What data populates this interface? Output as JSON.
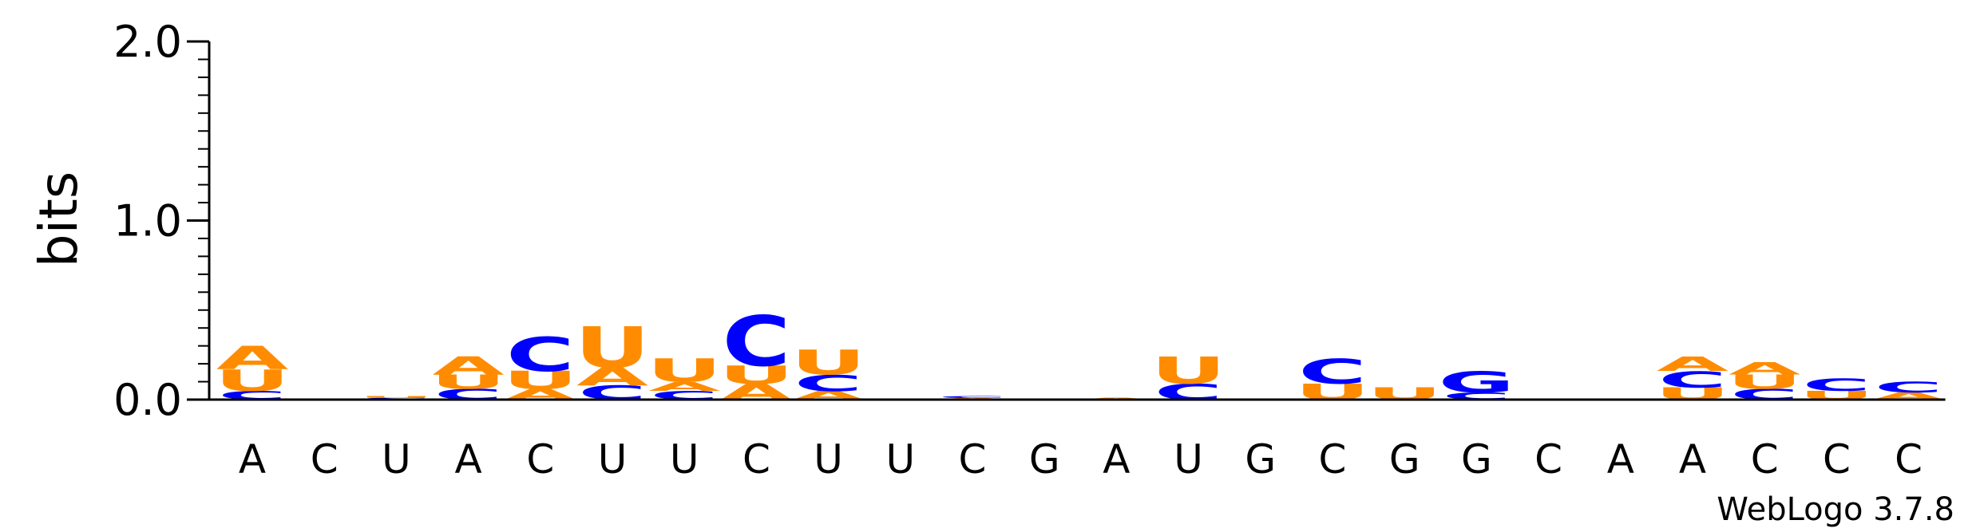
{
  "chart_data": {
    "type": "sequence-logo",
    "ylabel": "bits",
    "ylim": [
      0,
      2
    ],
    "yticks": [
      "0.0",
      "1.0",
      "2.0"
    ],
    "colors": {
      "A": "#ff8c00",
      "U": "#ff8c00",
      "C": "#0000ff",
      "G": "#0000ff"
    },
    "positions": [
      {
        "label": "A",
        "stack": [
          {
            "letter": "C",
            "h": 0.05
          },
          {
            "letter": "U",
            "h": 0.12
          },
          {
            "letter": "A",
            "h": 0.13
          }
        ]
      },
      {
        "label": "C",
        "stack": []
      },
      {
        "label": "U",
        "stack": [
          {
            "letter": "C",
            "h": 0.01
          },
          {
            "letter": "U",
            "h": 0.01
          }
        ]
      },
      {
        "label": "A",
        "stack": [
          {
            "letter": "C",
            "h": 0.06
          },
          {
            "letter": "U",
            "h": 0.08
          },
          {
            "letter": "A",
            "h": 0.1
          }
        ]
      },
      {
        "label": "C",
        "stack": [
          {
            "letter": "A",
            "h": 0.06
          },
          {
            "letter": "U",
            "h": 0.1
          },
          {
            "letter": "C",
            "h": 0.19
          }
        ]
      },
      {
        "label": "U",
        "stack": [
          {
            "letter": "C",
            "h": 0.08
          },
          {
            "letter": "A",
            "h": 0.1
          },
          {
            "letter": "U",
            "h": 0.23
          }
        ]
      },
      {
        "label": "U",
        "stack": [
          {
            "letter": "C",
            "h": 0.05
          },
          {
            "letter": "A",
            "h": 0.05
          },
          {
            "letter": "U",
            "h": 0.13
          }
        ]
      },
      {
        "label": "C",
        "stack": [
          {
            "letter": "A",
            "h": 0.09
          },
          {
            "letter": "U",
            "h": 0.1
          },
          {
            "letter": "C",
            "h": 0.28
          }
        ]
      },
      {
        "label": "U",
        "stack": [
          {
            "letter": "A",
            "h": 0.05
          },
          {
            "letter": "C",
            "h": 0.09
          },
          {
            "letter": "U",
            "h": 0.14
          }
        ]
      },
      {
        "label": "U",
        "stack": []
      },
      {
        "label": "C",
        "stack": [
          {
            "letter": "A",
            "h": 0.01
          },
          {
            "letter": "C",
            "h": 0.01
          }
        ]
      },
      {
        "label": "G",
        "stack": []
      },
      {
        "label": "A",
        "stack": [
          {
            "letter": "A",
            "h": 0.01
          }
        ]
      },
      {
        "label": "U",
        "stack": [
          {
            "letter": "C",
            "h": 0.09
          },
          {
            "letter": "U",
            "h": 0.15
          }
        ]
      },
      {
        "label": "G",
        "stack": []
      },
      {
        "label": "C",
        "stack": [
          {
            "letter": "U",
            "h": 0.09
          },
          {
            "letter": "C",
            "h": 0.14
          }
        ]
      },
      {
        "label": "G",
        "stack": [
          {
            "letter": "U",
            "h": 0.07
          }
        ]
      },
      {
        "label": "G",
        "stack": [
          {
            "letter": "C",
            "h": 0.04
          },
          {
            "letter": "G",
            "h": 0.12
          }
        ]
      },
      {
        "label": "C",
        "stack": []
      },
      {
        "label": "A",
        "stack": []
      },
      {
        "label": "A",
        "stack": [
          {
            "letter": "U",
            "h": 0.07
          },
          {
            "letter": "C",
            "h": 0.09
          },
          {
            "letter": "A",
            "h": 0.08
          }
        ]
      },
      {
        "label": "C",
        "stack": [
          {
            "letter": "C",
            "h": 0.06
          },
          {
            "letter": "U",
            "h": 0.08
          },
          {
            "letter": "A",
            "h": 0.07
          }
        ]
      },
      {
        "label": "C",
        "stack": [
          {
            "letter": "U",
            "h": 0.05
          },
          {
            "letter": "C",
            "h": 0.07
          }
        ]
      },
      {
        "label": "C",
        "stack": [
          {
            "letter": "A",
            "h": 0.04
          },
          {
            "letter": "C",
            "h": 0.06
          }
        ]
      }
    ]
  },
  "footer": {
    "credit": "WebLogo 3.7.8"
  }
}
